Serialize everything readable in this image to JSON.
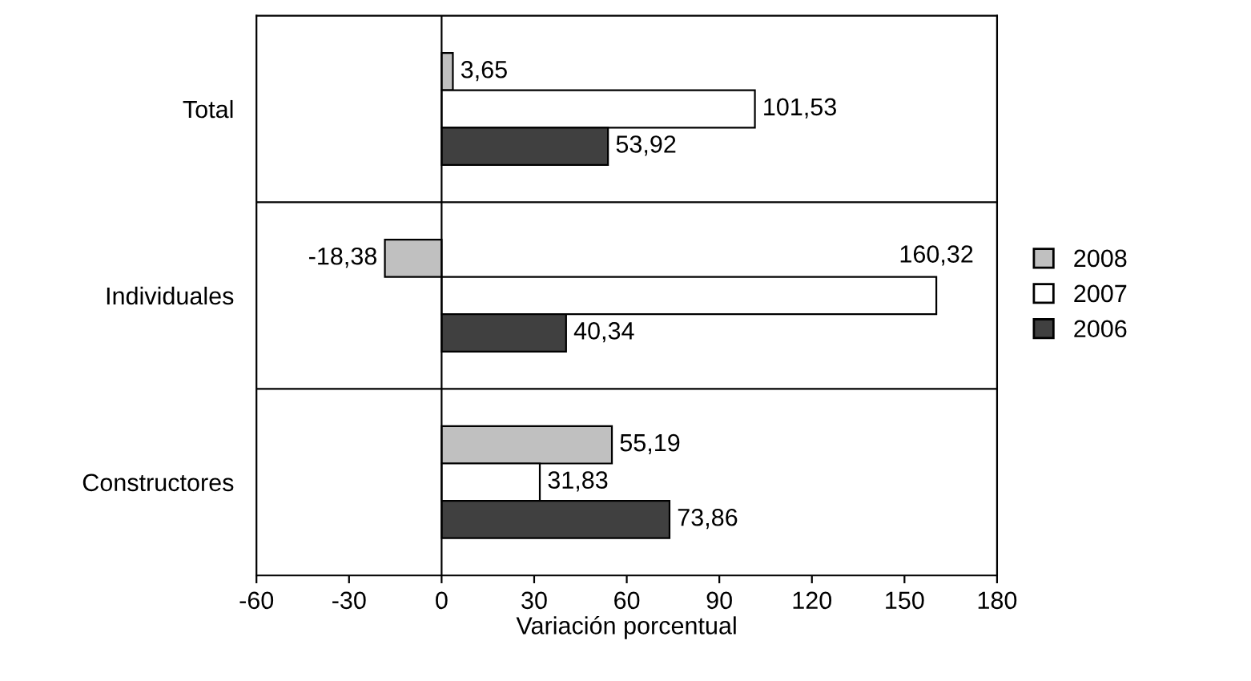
{
  "chart_data": {
    "type": "bar",
    "orientation": "horizontal",
    "categories": [
      "Total",
      "Individuales",
      "Constructores"
    ],
    "series": [
      {
        "name": "2008",
        "color": "#c0c0c0",
        "values": [
          3.65,
          -18.38,
          55.19
        ],
        "value_labels": [
          "3,65",
          "-18,38",
          "55,19"
        ]
      },
      {
        "name": "2007",
        "color": "#ffffff",
        "values": [
          101.53,
          160.32,
          31.83
        ],
        "value_labels": [
          "101,53",
          "160,32",
          "31,83"
        ]
      },
      {
        "name": "2006",
        "color": "#404040",
        "values": [
          53.92,
          40.34,
          73.86
        ],
        "value_labels": [
          "53,92",
          "40,34",
          "73,86"
        ]
      }
    ],
    "xlim": [
      -60,
      180
    ],
    "xticks": [
      -60,
      -30,
      0,
      30,
      60,
      90,
      120,
      150,
      180
    ],
    "xlabel": "Variación porcentual",
    "grid": "y",
    "ref_lines": [
      {
        "axis": "x",
        "value": 0,
        "color": "#000000"
      }
    ],
    "legend": "right"
  }
}
